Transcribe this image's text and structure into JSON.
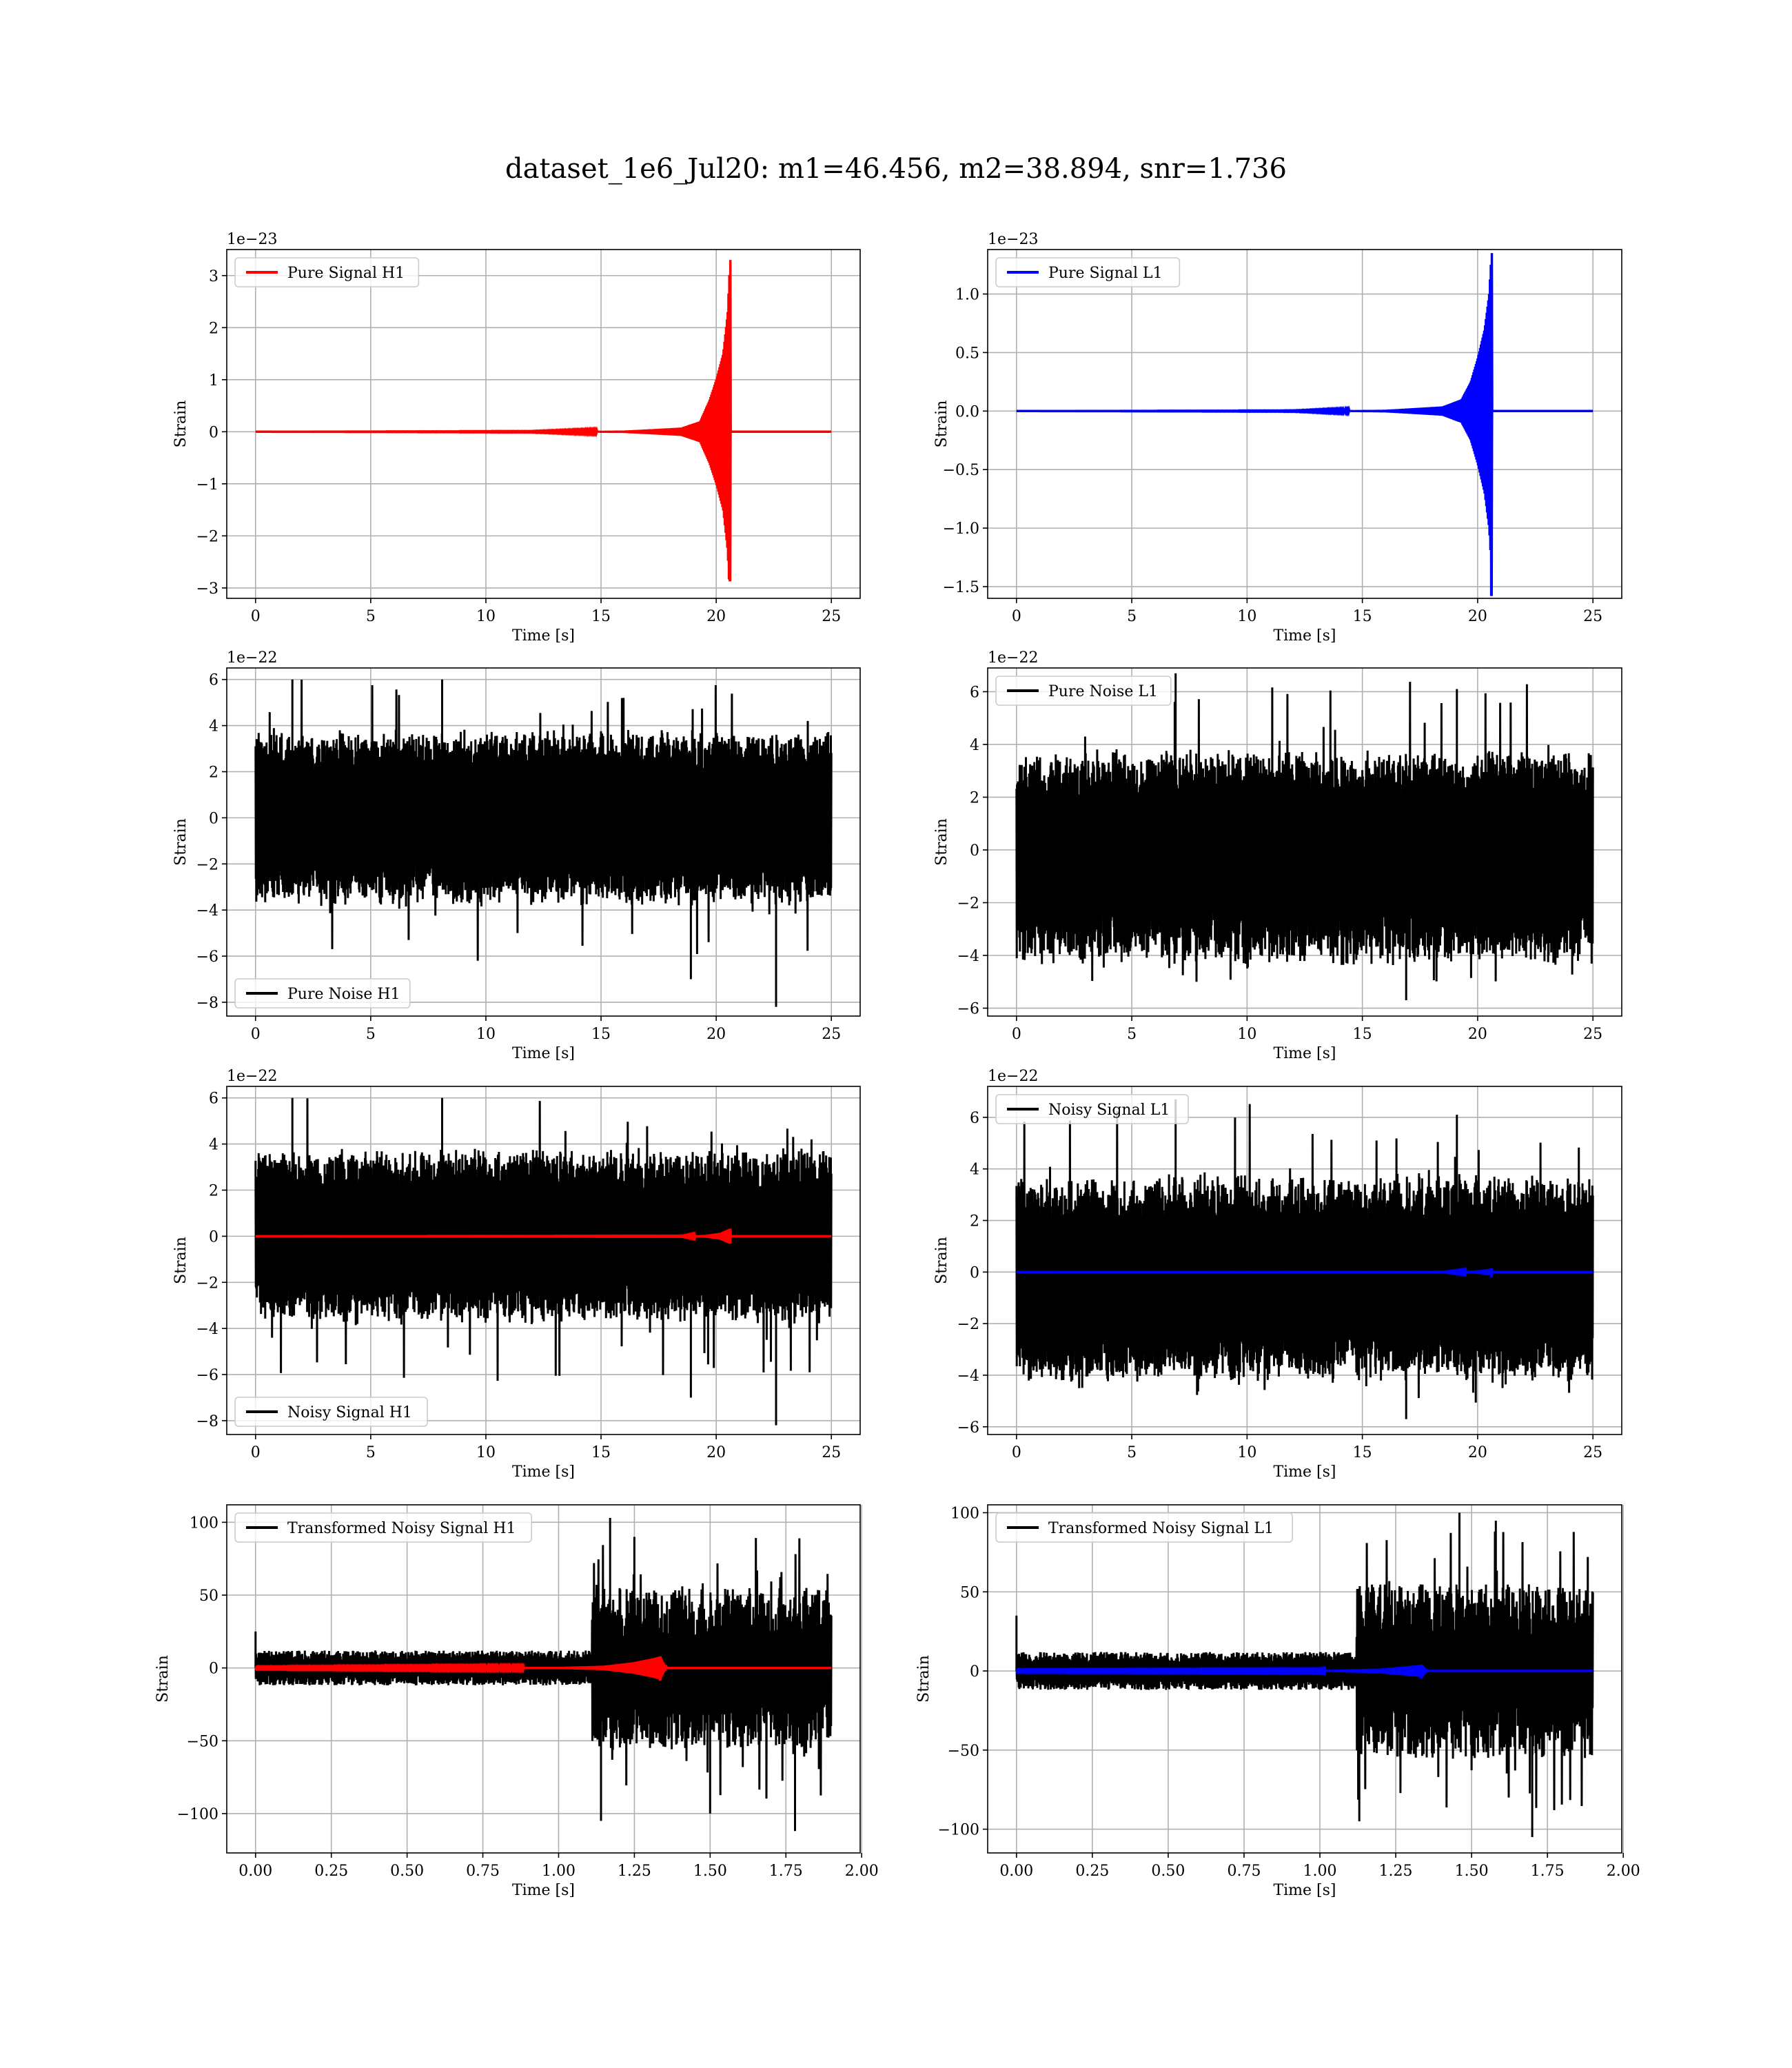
{
  "figure": {
    "title": "dataset_1e6_Jul20: m1=46.456, m2=38.894, snr=1.736"
  },
  "chart_data": [
    {
      "id": "pure-signal-h1",
      "type": "line",
      "xlabel": "Time [s]",
      "ylabel": "Strain",
      "offset_text": "1e−23",
      "xlim": [
        -1.25,
        26.25
      ],
      "ylim": [
        -3.2,
        3.5
      ],
      "xticks": [
        0,
        5,
        10,
        15,
        20,
        25
      ],
      "xtick_labels": [
        "0",
        "5",
        "10",
        "15",
        "20",
        "25"
      ],
      "yticks": [
        -3,
        -2,
        -1,
        0,
        1,
        2,
        3
      ],
      "ytick_labels": [
        "−3",
        "−2",
        "−1",
        "0",
        "1",
        "2",
        "3"
      ],
      "grid": true,
      "legend_position": "upper-left",
      "series": [
        {
          "name": "Pure Signal H1",
          "color": "#ff0000",
          "kind": "chirp",
          "x_range": [
            0,
            25
          ],
          "merger_time": 20.6,
          "peak_positive": 3.3,
          "peak_negative": -2.85,
          "envelope": [
            [
              0,
              0
            ],
            [
              12,
              0.005
            ],
            [
              16,
              0.02
            ],
            [
              18.5,
              0.08
            ],
            [
              19.3,
              0.2
            ],
            [
              19.7,
              0.6
            ],
            [
              20.0,
              1.0
            ],
            [
              20.3,
              1.5
            ],
            [
              20.5,
              2.3
            ],
            [
              20.6,
              3.3
            ],
            [
              20.65,
              0
            ]
          ]
        }
      ]
    },
    {
      "id": "pure-signal-l1",
      "type": "line",
      "xlabel": "Time [s]",
      "ylabel": "Strain",
      "offset_text": "1e−23",
      "xlim": [
        -1.25,
        26.25
      ],
      "ylim": [
        -1.6,
        1.38
      ],
      "xticks": [
        0,
        5,
        10,
        15,
        20,
        25
      ],
      "xtick_labels": [
        "0",
        "5",
        "10",
        "15",
        "20",
        "25"
      ],
      "yticks": [
        -1.5,
        -1.0,
        -0.5,
        0.0,
        0.5,
        1.0
      ],
      "ytick_labels": [
        "−1.5",
        "−1.0",
        "−0.5",
        "0.0",
        "0.5",
        "1.0"
      ],
      "grid": true,
      "legend_position": "upper-left",
      "series": [
        {
          "name": "Pure Signal L1",
          "color": "#0000ff",
          "kind": "chirp",
          "x_range": [
            0,
            25
          ],
          "merger_time": 20.6,
          "peak_positive": 1.35,
          "peak_negative": -1.57,
          "envelope": [
            [
              0,
              0
            ],
            [
              12,
              0.002
            ],
            [
              16,
              0.01
            ],
            [
              18.5,
              0.04
            ],
            [
              19.3,
              0.1
            ],
            [
              19.7,
              0.25
            ],
            [
              20.0,
              0.45
            ],
            [
              20.3,
              0.7
            ],
            [
              20.5,
              1.0
            ],
            [
              20.6,
              1.35
            ],
            [
              20.65,
              0
            ]
          ]
        }
      ]
    },
    {
      "id": "pure-noise-h1",
      "type": "line",
      "xlabel": "Time [s]",
      "ylabel": "Strain",
      "offset_text": "1e−22",
      "xlim": [
        -1.25,
        26.25
      ],
      "ylim": [
        -8.6,
        6.5
      ],
      "xticks": [
        0,
        5,
        10,
        15,
        20,
        25
      ],
      "xtick_labels": [
        "0",
        "5",
        "10",
        "15",
        "20",
        "25"
      ],
      "yticks": [
        -8,
        -6,
        -4,
        -2,
        0,
        2,
        4,
        6
      ],
      "ytick_labels": [
        "−8",
        "−6",
        "−4",
        "−2",
        "0",
        "2",
        "4",
        "6"
      ],
      "grid": true,
      "legend_position": "lower-left",
      "series": [
        {
          "name": "Pure Noise H1",
          "color": "#000000",
          "kind": "noise",
          "x_range": [
            0,
            25
          ],
          "core_low": -3.5,
          "core_high": 3.5,
          "max": 6.0,
          "min": -8.2,
          "spikes": [
            [
              22.6,
              -8.2
            ],
            [
              18.9,
              -7.0
            ],
            [
              1.6,
              6.0
            ],
            [
              8.1,
              6.0
            ]
          ]
        }
      ]
    },
    {
      "id": "pure-noise-l1",
      "type": "line",
      "xlabel": "Time [s]",
      "ylabel": "Strain",
      "offset_text": "1e−22",
      "xlim": [
        -1.25,
        26.25
      ],
      "ylim": [
        -6.3,
        6.9
      ],
      "xticks": [
        0,
        5,
        10,
        15,
        20,
        25
      ],
      "xtick_labels": [
        "0",
        "5",
        "10",
        "15",
        "20",
        "25"
      ],
      "yticks": [
        -6,
        -4,
        -2,
        0,
        2,
        4,
        6
      ],
      "ytick_labels": [
        "−6",
        "−4",
        "−2",
        "0",
        "2",
        "4",
        "6"
      ],
      "grid": true,
      "legend_position": "upper-left",
      "series": [
        {
          "name": "Pure Noise L1",
          "color": "#000000",
          "kind": "noise",
          "x_range": [
            0,
            25
          ],
          "core_low": -4.0,
          "core_high": 3.5,
          "max": 6.7,
          "min": -5.8,
          "spikes": [
            [
              6.9,
              6.7
            ],
            [
              19.1,
              6.1
            ],
            [
              16.9,
              -5.7
            ]
          ]
        }
      ]
    },
    {
      "id": "noisy-signal-h1",
      "type": "line",
      "xlabel": "Time [s]",
      "ylabel": "Strain",
      "offset_text": "1e−22",
      "xlim": [
        -1.25,
        26.25
      ],
      "ylim": [
        -8.6,
        6.5
      ],
      "xticks": [
        0,
        5,
        10,
        15,
        20,
        25
      ],
      "xtick_labels": [
        "0",
        "5",
        "10",
        "15",
        "20",
        "25"
      ],
      "yticks": [
        -8,
        -6,
        -4,
        -2,
        0,
        2,
        4,
        6
      ],
      "ytick_labels": [
        "−8",
        "−6",
        "−4",
        "−2",
        "0",
        "2",
        "4",
        "6"
      ],
      "grid": true,
      "legend_position": "lower-left",
      "series": [
        {
          "name": "Noisy Signal H1",
          "color": "#000000",
          "kind": "noise",
          "x_range": [
            0,
            25
          ],
          "core_low": -3.5,
          "core_high": 3.5,
          "max": 6.0,
          "min": -8.2,
          "spikes": [
            [
              22.6,
              -8.2
            ],
            [
              18.9,
              -7.0
            ],
            [
              1.6,
              6.0
            ],
            [
              8.1,
              6.0
            ]
          ]
        },
        {
          "name": "",
          "color": "#ff0000",
          "kind": "chirp",
          "x_range": [
            0,
            25
          ],
          "merger_time": 20.6,
          "peak_positive": 0.33,
          "peak_negative": -0.28,
          "envelope": [
            [
              0,
              0
            ],
            [
              18.5,
              0.01
            ],
            [
              19.5,
              0.05
            ],
            [
              20.2,
              0.15
            ],
            [
              20.6,
              0.33
            ],
            [
              20.65,
              0
            ]
          ]
        }
      ]
    },
    {
      "id": "noisy-signal-l1",
      "type": "line",
      "xlabel": "Time [s]",
      "ylabel": "Strain",
      "offset_text": "1e−22",
      "xlim": [
        -1.25,
        26.25
      ],
      "ylim": [
        -6.3,
        7.2
      ],
      "xticks": [
        0,
        5,
        10,
        15,
        20,
        25
      ],
      "xtick_labels": [
        "0",
        "5",
        "10",
        "15",
        "20",
        "25"
      ],
      "yticks": [
        -6,
        -4,
        -2,
        0,
        2,
        4,
        6
      ],
      "ytick_labels": [
        "−6",
        "−4",
        "−2",
        "0",
        "2",
        "4",
        "6"
      ],
      "grid": true,
      "legend_position": "upper-left",
      "series": [
        {
          "name": "Noisy Signal L1",
          "color": "#000000",
          "kind": "noise",
          "x_range": [
            0,
            25
          ],
          "core_low": -4.0,
          "core_high": 3.5,
          "max": 6.7,
          "min": -5.8,
          "spikes": [
            [
              6.9,
              6.7
            ],
            [
              19.1,
              6.1
            ],
            [
              16.9,
              -5.7
            ]
          ]
        },
        {
          "name": "",
          "color": "#0000ff",
          "kind": "chirp",
          "x_range": [
            0,
            25
          ],
          "merger_time": 20.6,
          "peak_positive": 0.14,
          "peak_negative": -0.16,
          "envelope": [
            [
              0,
              0
            ],
            [
              18.5,
              0.005
            ],
            [
              19.5,
              0.03
            ],
            [
              20.2,
              0.08
            ],
            [
              20.6,
              0.14
            ],
            [
              20.65,
              0
            ]
          ]
        }
      ]
    },
    {
      "id": "transformed-noisy-signal-h1",
      "type": "line",
      "xlabel": "Time [s]",
      "ylabel": "Strain",
      "offset_text": "",
      "xlim": [
        -0.095,
        1.995
      ],
      "ylim": [
        -127,
        112
      ],
      "xticks": [
        0,
        0.25,
        0.5,
        0.75,
        1.0,
        1.25,
        1.5,
        1.75,
        2.0
      ],
      "xtick_labels": [
        "0.00",
        "0.25",
        "0.50",
        "0.75",
        "1.00",
        "1.25",
        "1.50",
        "1.75",
        "2.00"
      ],
      "yticks": [
        -100,
        -50,
        0,
        50,
        100
      ],
      "ytick_labels": [
        "−100",
        "−50",
        "0",
        "50",
        "100"
      ],
      "grid": true,
      "legend_position": "upper-left",
      "series": [
        {
          "name": "Transformed Noisy Signal H1",
          "color": "#000000",
          "kind": "whitened",
          "x_range": [
            0,
            1.9
          ],
          "quiet_until": 1.11,
          "quiet_amplitude": 12,
          "loud_amplitude": 55,
          "max": 103,
          "min": -112,
          "spikes": [
            [
              0.0,
              25
            ],
            [
              1.17,
              103
            ],
            [
              1.25,
              90
            ],
            [
              1.78,
              -112
            ],
            [
              1.14,
              -105
            ],
            [
              1.5,
              -100
            ]
          ]
        },
        {
          "name": "",
          "color": "#ff0000",
          "kind": "chirp",
          "x_range": [
            0,
            1.9
          ],
          "merger_time": 1.335,
          "peak_positive": 8,
          "peak_negative": -8,
          "envelope": [
            [
              0,
              0.3
            ],
            [
              1.0,
              0.6
            ],
            [
              1.15,
              1.5
            ],
            [
              1.25,
              4
            ],
            [
              1.32,
              7
            ],
            [
              1.335,
              8
            ],
            [
              1.35,
              2
            ],
            [
              1.9,
              0.3
            ]
          ]
        }
      ]
    },
    {
      "id": "transformed-noisy-signal-l1",
      "type": "line",
      "xlabel": "Time [s]",
      "ylabel": "Strain",
      "offset_text": "",
      "xlim": [
        -0.095,
        1.995
      ],
      "ylim": [
        -115,
        105
      ],
      "xticks": [
        0,
        0.25,
        0.5,
        0.75,
        1.0,
        1.25,
        1.5,
        1.75,
        2.0
      ],
      "xtick_labels": [
        "0.00",
        "0.25",
        "0.50",
        "0.75",
        "1.00",
        "1.25",
        "1.50",
        "1.75",
        "2.00"
      ],
      "yticks": [
        -100,
        -50,
        0,
        50,
        100
      ],
      "ytick_labels": [
        "−100",
        "−50",
        "0",
        "50",
        "100"
      ],
      "grid": true,
      "legend_position": "upper-left",
      "series": [
        {
          "name": "Transformed Noisy Signal L1",
          "color": "#000000",
          "kind": "whitened",
          "x_range": [
            0,
            1.9
          ],
          "quiet_until": 1.12,
          "quiet_amplitude": 12,
          "loud_amplitude": 55,
          "max": 100,
          "min": -105,
          "spikes": [
            [
              0.0,
              35
            ],
            [
              1.46,
              100
            ],
            [
              1.13,
              -95
            ],
            [
              1.7,
              -105
            ],
            [
              1.58,
              95
            ]
          ]
        },
        {
          "name": "",
          "color": "#0000ff",
          "kind": "chirp",
          "x_range": [
            0,
            1.9
          ],
          "merger_time": 1.335,
          "peak_positive": 4,
          "peak_negative": -4,
          "envelope": [
            [
              0,
              0.3
            ],
            [
              1.0,
              0.4
            ],
            [
              1.2,
              1.5
            ],
            [
              1.32,
              3.5
            ],
            [
              1.335,
              4
            ],
            [
              1.35,
              1
            ],
            [
              1.9,
              0.3
            ]
          ]
        }
      ]
    }
  ]
}
